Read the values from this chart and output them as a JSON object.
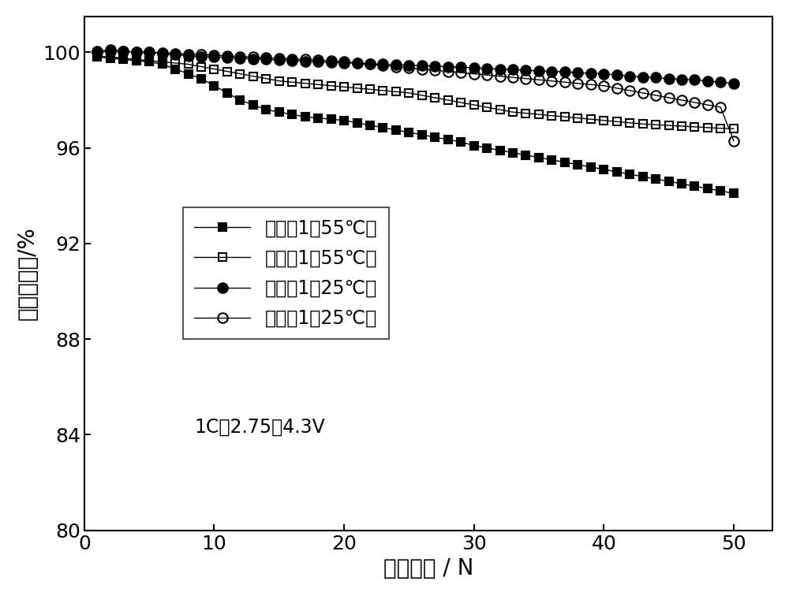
{
  "title": "",
  "xlabel": "循环圈数 / N",
  "ylabel": "容量保持率/%",
  "xlim": [
    0,
    53
  ],
  "ylim": [
    80,
    101.5
  ],
  "yticks": [
    80,
    84,
    88,
    92,
    96,
    100
  ],
  "xticks": [
    0,
    10,
    20,
    30,
    40,
    50
  ],
  "annotation": "1C，2.75～4.3V",
  "background_color": "#ffffff",
  "series": [
    {
      "label": "参照例1（55℃）",
      "color": "#000000",
      "marker": "s",
      "fillstyle": "full",
      "x": [
        1,
        2,
        3,
        4,
        5,
        6,
        7,
        8,
        9,
        10,
        11,
        12,
        13,
        14,
        15,
        16,
        17,
        18,
        19,
        20,
        21,
        22,
        23,
        24,
        25,
        26,
        27,
        28,
        29,
        30,
        31,
        32,
        33,
        34,
        35,
        36,
        37,
        38,
        39,
        40,
        41,
        42,
        43,
        44,
        45,
        46,
        47,
        48,
        49,
        50
      ],
      "y": [
        99.8,
        99.75,
        99.7,
        99.65,
        99.6,
        99.5,
        99.3,
        99.1,
        98.9,
        98.6,
        98.3,
        98.0,
        97.8,
        97.6,
        97.5,
        97.4,
        97.3,
        97.25,
        97.2,
        97.15,
        97.05,
        96.95,
        96.85,
        96.75,
        96.65,
        96.55,
        96.45,
        96.35,
        96.25,
        96.1,
        96.0,
        95.9,
        95.8,
        95.7,
        95.6,
        95.5,
        95.4,
        95.3,
        95.2,
        95.1,
        95.0,
        94.9,
        94.8,
        94.7,
        94.6,
        94.5,
        94.4,
        94.3,
        94.2,
        94.1
      ]
    },
    {
      "label": "实施例1（55℃）",
      "color": "#000000",
      "marker": "s",
      "fillstyle": "none",
      "x": [
        1,
        2,
        3,
        4,
        5,
        6,
        7,
        8,
        9,
        10,
        11,
        12,
        13,
        14,
        15,
        16,
        17,
        18,
        19,
        20,
        21,
        22,
        23,
        24,
        25,
        26,
        27,
        28,
        29,
        30,
        31,
        32,
        33,
        34,
        35,
        36,
        37,
        38,
        39,
        40,
        41,
        42,
        43,
        44,
        45,
        46,
        47,
        48,
        49,
        50
      ],
      "y": [
        99.85,
        99.8,
        99.75,
        99.7,
        99.65,
        99.6,
        99.55,
        99.5,
        99.4,
        99.3,
        99.2,
        99.1,
        99.0,
        98.9,
        98.8,
        98.75,
        98.7,
        98.65,
        98.6,
        98.55,
        98.5,
        98.45,
        98.4,
        98.35,
        98.3,
        98.2,
        98.1,
        98.0,
        97.9,
        97.8,
        97.7,
        97.6,
        97.5,
        97.45,
        97.4,
        97.35,
        97.3,
        97.25,
        97.2,
        97.15,
        97.1,
        97.05,
        97.0,
        96.97,
        96.94,
        96.91,
        96.88,
        96.85,
        96.82,
        96.8
      ]
    },
    {
      "label": "参照例1（25℃）",
      "color": "#000000",
      "marker": "o",
      "fillstyle": "full",
      "x": [
        1,
        2,
        3,
        4,
        5,
        6,
        7,
        8,
        9,
        10,
        11,
        12,
        13,
        14,
        15,
        16,
        17,
        18,
        19,
        20,
        21,
        22,
        23,
        24,
        25,
        26,
        27,
        28,
        29,
        30,
        31,
        32,
        33,
        34,
        35,
        36,
        37,
        38,
        39,
        40,
        41,
        42,
        43,
        44,
        45,
        46,
        47,
        48,
        49,
        50
      ],
      "y": [
        100.0,
        100.05,
        100.05,
        100.0,
        100.0,
        99.95,
        99.9,
        99.85,
        99.82,
        99.8,
        99.78,
        99.75,
        99.73,
        99.7,
        99.68,
        99.65,
        99.63,
        99.6,
        99.58,
        99.56,
        99.54,
        99.52,
        99.5,
        99.48,
        99.46,
        99.44,
        99.42,
        99.4,
        99.38,
        99.35,
        99.32,
        99.3,
        99.28,
        99.25,
        99.22,
        99.2,
        99.18,
        99.15,
        99.12,
        99.1,
        99.05,
        99.0,
        98.97,
        98.94,
        98.9,
        98.87,
        98.85,
        98.8,
        98.75,
        98.7
      ]
    },
    {
      "label": "实施例1（25℃）",
      "color": "#000000",
      "marker": "o",
      "fillstyle": "none",
      "x": [
        1,
        2,
        3,
        4,
        5,
        6,
        7,
        8,
        9,
        10,
        11,
        12,
        13,
        14,
        15,
        16,
        17,
        18,
        19,
        20,
        21,
        22,
        23,
        24,
        25,
        26,
        27,
        28,
        29,
        30,
        31,
        32,
        33,
        34,
        35,
        36,
        37,
        38,
        39,
        40,
        41,
        42,
        43,
        44,
        45,
        46,
        47,
        48,
        49,
        50
      ],
      "y": [
        100.05,
        100.1,
        100.05,
        100.0,
        100.0,
        99.98,
        99.95,
        99.92,
        99.9,
        99.88,
        99.85,
        99.82,
        99.8,
        99.77,
        99.75,
        99.72,
        99.7,
        99.67,
        99.65,
        99.6,
        99.55,
        99.5,
        99.45,
        99.4,
        99.35,
        99.3,
        99.25,
        99.2,
        99.15,
        99.1,
        99.05,
        99.0,
        98.95,
        98.9,
        98.85,
        98.8,
        98.75,
        98.7,
        98.65,
        98.6,
        98.5,
        98.4,
        98.3,
        98.2,
        98.1,
        98.0,
        97.9,
        97.8,
        97.7,
        96.3
      ]
    }
  ],
  "fontsize_label": 20,
  "fontsize_tick": 18,
  "fontsize_legend": 17,
  "fontsize_annotation": 17
}
